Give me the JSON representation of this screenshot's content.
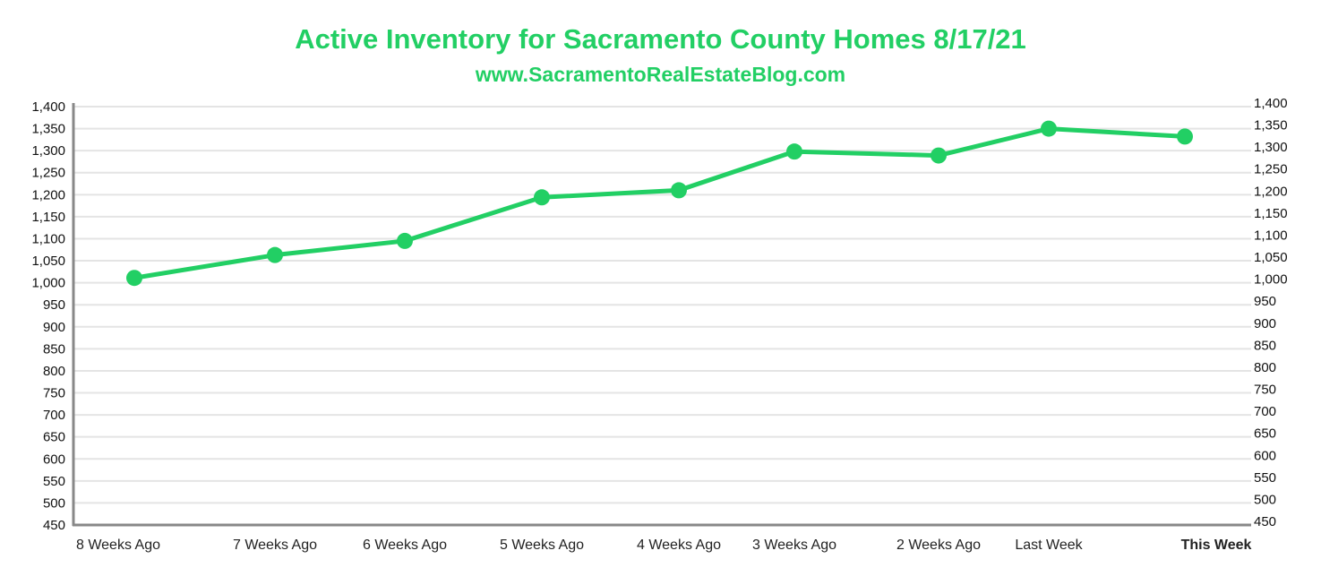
{
  "chart_data": {
    "type": "line",
    "title": "Active Inventory for Sacramento County Homes 8/17/21",
    "subtitle": "www.SacramentoRealEstateBlog.com",
    "xlabel": "",
    "ylabel": "",
    "categories": [
      "8 Weeks Ago",
      "7 Weeks Ago",
      "6 Weeks Ago",
      "5 Weeks Ago",
      "4 Weeks Ago",
      "3 Weeks Ago",
      "2 Weeks Ago",
      "Last Week",
      "This Week"
    ],
    "highlight_category": "This Week",
    "series": [
      {
        "name": "Active Inventory",
        "values": [
          1011,
          1063,
          1095,
          1194,
          1210,
          1298,
          1289,
          1350,
          1332
        ]
      }
    ],
    "ylim": [
      450,
      1400
    ],
    "yticks": [
      "450",
      "500",
      "550",
      "600",
      "650",
      "700",
      "750",
      "800",
      "850",
      "900",
      "950",
      "1,000",
      "1,050",
      "1,100",
      "1,150",
      "1,200",
      "1,250",
      "1,300",
      "1,350",
      "1,400"
    ],
    "grid": true,
    "color": "#22cf64",
    "axis_color": "#888888"
  }
}
